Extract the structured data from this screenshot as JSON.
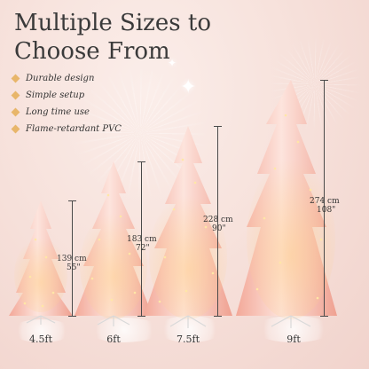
{
  "title": {
    "line1": "Multiple Sizes to",
    "line2": "Choose From"
  },
  "features": [
    "Durable design",
    "Simple setup",
    "Long time use",
    "Flame-retardant PVC"
  ],
  "trees": [
    {
      "size": "4.5ft",
      "cm": "139 cm",
      "inch": "55\""
    },
    {
      "size": "6ft",
      "cm": "183 cm",
      "inch": "72\""
    },
    {
      "size": "7.5ft",
      "cm": "228 cm",
      "inch": "90\""
    },
    {
      "size": "9ft",
      "cm": "274 cm",
      "inch": "108\""
    }
  ],
  "colors": {
    "tree_light": "#fde6df",
    "tree_mid": "#f6b6a8",
    "tree_dark": "#e98f80",
    "light_glow": "#ffd87a",
    "accent": "#e8b66a"
  },
  "icons": {
    "bullet": "diamond-bullet-icon",
    "decor": "sparkle-icon"
  }
}
